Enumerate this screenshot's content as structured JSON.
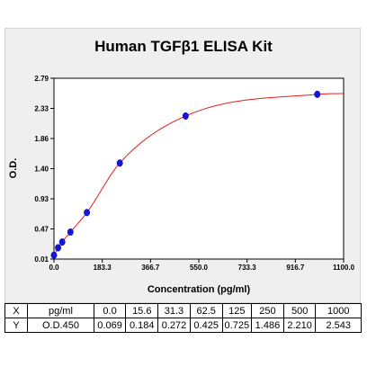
{
  "chart_data": {
    "type": "scatter",
    "title": "Human TGFβ1 ELISA Kit",
    "xlabel": "Concentration (pg/ml)",
    "ylabel": "O.D.",
    "xlim": [
      0,
      1100
    ],
    "ylim": [
      0.01,
      2.79
    ],
    "x_ticks": [
      "0.0",
      "183.3",
      "366.7",
      "550.0",
      "733.3",
      "916.7",
      "1100.0"
    ],
    "y_ticks": [
      "0.01",
      "0.47",
      "0.93",
      "1.40",
      "1.86",
      "2.33",
      "2.79"
    ],
    "grid": false,
    "series": [
      {
        "x": [
          0,
          15.6,
          31.3,
          62.5,
          125,
          250,
          500,
          1000
        ],
        "y": [
          0.069,
          0.184,
          0.272,
          0.425,
          0.725,
          1.486,
          2.21,
          2.543
        ],
        "marker_color": "#1515e0"
      }
    ],
    "fit_curve_color": "#e02020",
    "table": {
      "rows": [
        [
          "X",
          "pg/ml",
          "0.0",
          "15.6",
          "31.3",
          "62.5",
          "125",
          "250",
          "500",
          "1000"
        ],
        [
          "Y",
          "O.D.450",
          "0.069",
          "0.184",
          "0.272",
          "0.425",
          "0.725",
          "1.486",
          "2.210",
          "2.543"
        ]
      ]
    }
  }
}
